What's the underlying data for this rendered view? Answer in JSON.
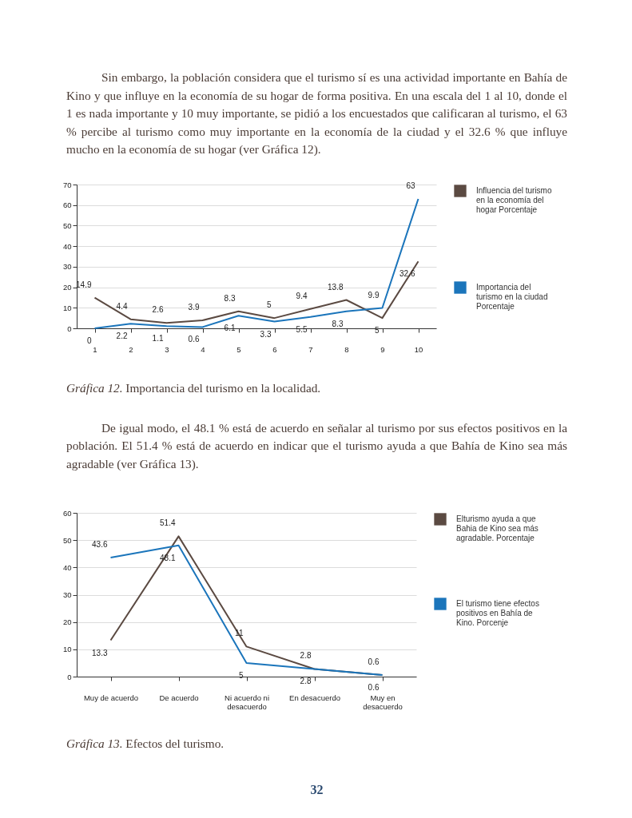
{
  "chart_data": [
    {
      "type": "line",
      "categories": [
        "1",
        "2",
        "3",
        "4",
        "5",
        "6",
        "7",
        "8",
        "9",
        "10"
      ],
      "series": [
        {
          "name": "Influencia del turismo en la economía del hogar Porcentaje",
          "color": "#5b4a42",
          "values": [
            14.9,
            4.4,
            2.6,
            3.9,
            8.3,
            5,
            9.4,
            13.8,
            5,
            32.6
          ]
        },
        {
          "name": "Importancia del turismo en la ciudad Porcentaje",
          "color": "#1b75bb",
          "values": [
            0,
            2.2,
            1.1,
            0.6,
            6.1,
            3.3,
            5.5,
            8.3,
            9.9,
            63
          ]
        }
      ],
      "ylim": [
        0,
        70
      ],
      "yticks": [
        0,
        10,
        20,
        30,
        40,
        50,
        60,
        70
      ],
      "grid": "y",
      "legend": "right",
      "data_labels": true,
      "annotations": [
        "Sin embargo, la población considera que el turismo sí es una actividad importante en Bahía de Kino y que influye en la economía de su hogar de forma positiva. En una escala del 1 al 10, donde el 1 es nada importante y 10 muy importante, se pidió a los encuestados que calificaran al turismo, el 63 % percibe al turismo como muy importante en la economía de la ciudad y el 32.6 % que influye mucho en la economía de su hogar (ver Gráfica 12).",
        "Gráfica 12. Importancia del turismo en la localidad."
      ]
    },
    {
      "type": "line",
      "categories": [
        "Muy de acuerdo",
        "De acuerdo",
        "Ni acuerdo ni desacuerdo",
        "En desacuerdo",
        "Muy en desacuerdo"
      ],
      "series": [
        {
          "name": "Elturismo ayuda a que Bahia de Kino sea más agradable. Porcentaje",
          "color": "#5b4a42",
          "values": [
            13.3,
            51.4,
            11,
            2.8,
            0.6
          ]
        },
        {
          "name": "El turismo tiene efectos positivos en Bahía de Kino. Porcenje",
          "color": "#1b75bb",
          "values": [
            43.6,
            48.1,
            5,
            2.8,
            0.6
          ]
        }
      ],
      "ylim": [
        0,
        60
      ],
      "yticks": [
        0,
        10,
        20,
        30,
        40,
        50,
        60
      ],
      "grid": "y",
      "legend": "right",
      "data_labels": true,
      "annotations": [
        "De igual modo, el 48.1 % está de acuerdo en señalar al turismo por sus efectos positivos en la población. El 51.4 % está de acuerdo en indicar que el turismo ayuda a que Bahía de Kino sea más agradable (ver Gráfica 13).",
        "Gráfica 13. Efectos del turismo.",
        "32"
      ]
    }
  ]
}
